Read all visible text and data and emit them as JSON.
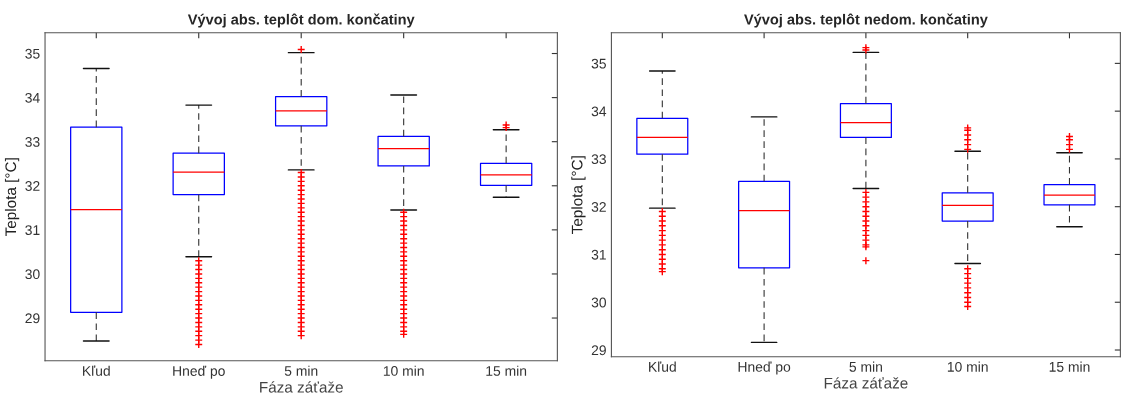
{
  "chart_data": [
    {
      "type": "box",
      "title": "Vývoj abs. teplôt dom. končatiny",
      "xlabel": "Fáza záťaže",
      "ylabel": "Teplota [°C]",
      "categories": [
        "Kľud",
        "Hneď po",
        "5 min",
        "10 min",
        "15 min"
      ],
      "ylim": [
        28.03,
        35.47
      ],
      "yticks": [
        29,
        30,
        31,
        32,
        33,
        34,
        35
      ],
      "grid": false,
      "marker": "cross",
      "series": [
        {
          "color": "#0000ff",
          "boxes": [
            {
              "low": 28.48,
              "q1": 29.13,
              "median": 31.46,
              "q3": 33.33,
              "high": 34.66
            },
            {
              "low": 30.39,
              "q1": 31.8,
              "median": 32.31,
              "q3": 32.74,
              "high": 33.83,
              "outliers": [
                30.3,
                30.2,
                30.1,
                30.0,
                29.9,
                29.8,
                29.7,
                29.6,
                29.5,
                29.4,
                29.3,
                29.2,
                29.1,
                29.0,
                28.9,
                28.8,
                28.7,
                28.6,
                28.5,
                28.4
              ]
            },
            {
              "low": 32.36,
              "q1": 33.36,
              "median": 33.7,
              "q3": 34.02,
              "high": 35.02,
              "outliers": [
                35.09,
                32.3,
                32.2,
                32.1,
                32.0,
                31.9,
                31.8,
                31.7,
                31.6,
                31.5,
                31.4,
                31.3,
                31.2,
                31.1,
                31.0,
                30.9,
                30.8,
                30.7,
                30.6,
                30.5,
                30.4,
                30.3,
                30.2,
                30.1,
                30.0,
                29.9,
                29.8,
                29.7,
                29.6,
                29.5,
                29.4,
                29.3,
                29.2,
                29.1,
                29.0,
                28.9,
                28.8,
                28.7,
                28.6
              ]
            },
            {
              "low": 31.45,
              "q1": 32.45,
              "median": 32.84,
              "q3": 33.12,
              "high": 34.06,
              "outliers": [
                31.4,
                31.3,
                31.2,
                31.1,
                31.0,
                30.9,
                30.8,
                30.7,
                30.6,
                30.5,
                30.4,
                30.3,
                30.2,
                30.1,
                30.0,
                29.9,
                29.8,
                29.7,
                29.6,
                29.5,
                29.4,
                29.3,
                29.2,
                29.1,
                29.0,
                28.9,
                28.8,
                28.7,
                28.63
              ]
            },
            {
              "low": 31.74,
              "q1": 32.01,
              "median": 32.25,
              "q3": 32.51,
              "high": 33.27,
              "outliers": [
                33.32,
                33.38
              ]
            }
          ]
        }
      ]
    },
    {
      "type": "box",
      "title": "Vývoj abs. teplôt nedom. končatiny",
      "xlabel": "Fáza záťaže",
      "ylabel": "Teplota [°C]",
      "categories": [
        "Kľud",
        "Hneď po",
        "5 min",
        "10 min",
        "15 min"
      ],
      "ylim": [
        28.86,
        35.64
      ],
      "yticks": [
        29,
        30,
        31,
        32,
        33,
        34,
        35
      ],
      "grid": false,
      "marker": "cross",
      "series": [
        {
          "color": "#0000ff",
          "boxes": [
            {
              "low": 31.97,
              "q1": 33.1,
              "median": 33.45,
              "q3": 33.85,
              "high": 34.84,
              "outliers": [
                31.9,
                31.8,
                31.7,
                31.6,
                31.5,
                31.4,
                31.3,
                31.2,
                31.1,
                31.0,
                30.9,
                30.8,
                30.7,
                30.64
              ]
            },
            {
              "low": 29.16,
              "q1": 30.72,
              "median": 31.92,
              "q3": 32.53,
              "high": 33.88
            },
            {
              "low": 32.38,
              "q1": 33.45,
              "median": 33.76,
              "q3": 34.16,
              "high": 35.23,
              "outliers": [
                35.33,
                35.28,
                32.3,
                32.2,
                32.1,
                32.0,
                31.9,
                31.8,
                31.7,
                31.6,
                31.5,
                31.4,
                31.3,
                31.2,
                31.16,
                30.87
              ]
            },
            {
              "low": 30.81,
              "q1": 31.7,
              "median": 32.03,
              "q3": 32.29,
              "high": 33.16,
              "outliers": [
                33.2,
                33.3,
                33.4,
                33.5,
                33.6,
                33.65,
                30.7,
                30.6,
                30.5,
                30.4,
                30.3,
                30.2,
                30.1,
                30.0,
                29.91
              ]
            },
            {
              "low": 31.58,
              "q1": 32.04,
              "median": 32.24,
              "q3": 32.46,
              "high": 33.13,
              "outliers": [
                33.2,
                33.3,
                33.4,
                33.47
              ]
            }
          ]
        }
      ]
    }
  ]
}
